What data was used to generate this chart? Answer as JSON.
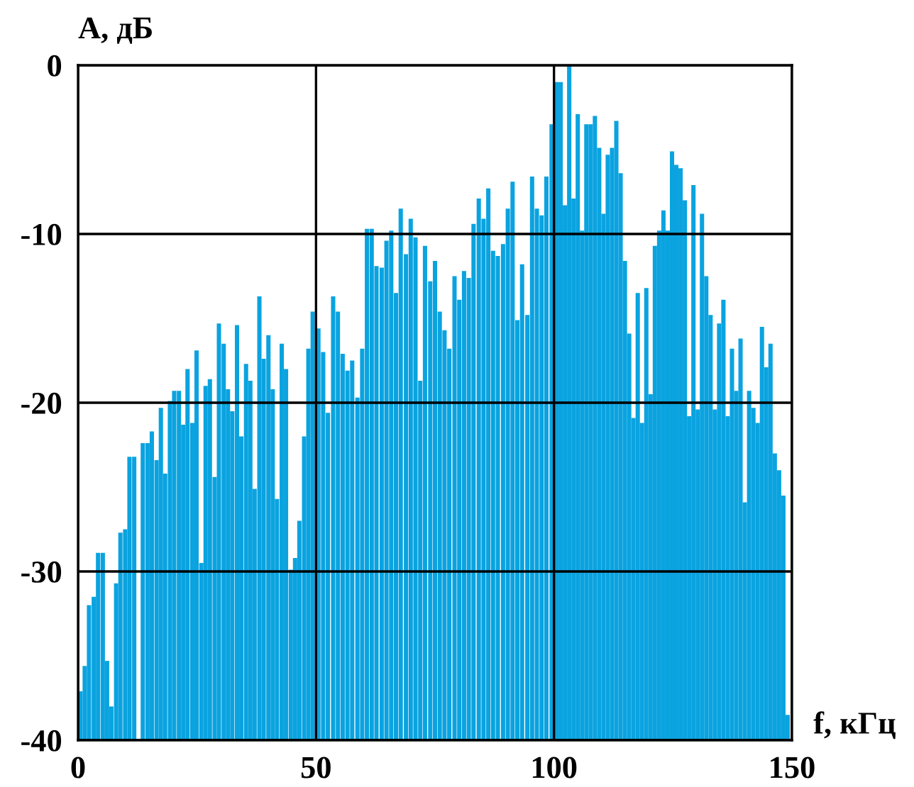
{
  "chart_data": {
    "type": "bar",
    "xlabel": "f, кГц",
    "ylabel": "A, дБ",
    "xlim": [
      0,
      150
    ],
    "xticks": [
      0,
      50,
      100,
      150
    ],
    "ylim": [
      -40,
      0
    ],
    "yticks": [
      0,
      -10,
      -20,
      -30,
      -40
    ],
    "grid": true,
    "series": [
      {
        "color": "#0aa3e0",
        "x": [
          0.5,
          1.4,
          2.3,
          3.3,
          4.2,
          5.2,
          6.1,
          7.0,
          8.0,
          8.9,
          9.9,
          10.8,
          11.8,
          13.6,
          14.6,
          15.5,
          16.5,
          17.4,
          18.3,
          19.3,
          20.2,
          21.2,
          22.1,
          23.0,
          24.0,
          24.9,
          25.9,
          26.8,
          27.7,
          28.7,
          29.6,
          30.6,
          31.5,
          32.4,
          33.4,
          34.3,
          35.3,
          36.2,
          37.1,
          38.1,
          39.0,
          40.0,
          40.9,
          41.8,
          42.8,
          43.7,
          44.7,
          45.6,
          46.5,
          47.5,
          48.4,
          49.3,
          50.5,
          51.5,
          52.5,
          53.6,
          54.6,
          55.6,
          56.6,
          57.6,
          58.7,
          59.7,
          60.7,
          61.7,
          62.7,
          63.8,
          64.8,
          65.8,
          66.8,
          67.8,
          68.9,
          69.9,
          70.9,
          71.9,
          72.9,
          74.0,
          75.0,
          76.0,
          77.0,
          78.0,
          79.1,
          80.1,
          81.1,
          82.1,
          83.1,
          84.2,
          85.2,
          86.2,
          87.2,
          88.2,
          89.3,
          90.3,
          91.3,
          92.3,
          93.3,
          94.4,
          95.4,
          96.4,
          97.4,
          98.4,
          99.5,
          100.5,
          101.4,
          102.3,
          103.2,
          104.1,
          105.0,
          105.9,
          106.8,
          107.7,
          108.6,
          109.5,
          110.4,
          111.3,
          112.2,
          113.1,
          114.0,
          114.9,
          115.8,
          116.7,
          117.6,
          118.5,
          119.4,
          120.3,
          121.2,
          122.1,
          123.0,
          123.9,
          124.8,
          125.7,
          126.6,
          127.5,
          128.4,
          129.3,
          130.2,
          131.1,
          132.0,
          132.9,
          133.8,
          134.7,
          135.6,
          136.5,
          137.4,
          138.3,
          139.2,
          140.1,
          141.0,
          141.9,
          142.8,
          143.7,
          144.6,
          145.5,
          146.4,
          147.3,
          148.2,
          149.1
        ],
        "base": [
          -40,
          -40,
          -40,
          -40,
          -40,
          -40,
          -40,
          -40,
          -40,
          -40,
          -40,
          -40,
          -40,
          -40,
          -40,
          -40,
          -40,
          -40,
          -40,
          -40,
          -40,
          -40,
          -40,
          -40,
          -40,
          -40,
          -40,
          -40,
          -40,
          -40,
          -40,
          -40,
          -40,
          -40,
          -40,
          -40,
          -40,
          -40,
          -40,
          -40,
          -40,
          -40,
          -40,
          -40,
          -40,
          -40,
          -40,
          -40,
          -40,
          -40,
          -40,
          -40,
          -40,
          -40,
          -40,
          -40,
          -40,
          -40,
          -40,
          -40,
          -40,
          -40,
          -40,
          -40,
          -40,
          -40,
          -40,
          -40,
          -40,
          -40,
          -40,
          -40,
          -40,
          -40,
          -40,
          -40,
          -40,
          -40,
          -40,
          -40,
          -40,
          -40,
          -40,
          -40,
          -40,
          -40,
          -40,
          -40,
          -40,
          -40,
          -40,
          -40,
          -40,
          -40,
          -40,
          -40,
          -40,
          -40,
          -40,
          -40,
          -40,
          -40,
          -40,
          -40,
          -40,
          -40,
          -40,
          -40,
          -40,
          -40,
          -40,
          -40,
          -40,
          -40,
          -40,
          -40,
          -40,
          -40,
          -40,
          -40,
          -40,
          -40,
          -40,
          -40,
          -40,
          -40,
          -40,
          -40,
          -40,
          -40,
          -40,
          -40,
          -40,
          -40,
          -40,
          -40,
          -40,
          -40,
          -40,
          -40,
          -40,
          -40,
          -40,
          -40,
          -40,
          -40,
          -40,
          -40,
          -40,
          -40,
          -40,
          -40,
          -40,
          -40,
          -40,
          -40
        ],
        "values": [
          2.9,
          4.4,
          8,
          8.5,
          11.1,
          11.1,
          4.7,
          2,
          9.3,
          12.3,
          12.5,
          16.8,
          16.8,
          17.6,
          17.6,
          18.3,
          16.6,
          19.7,
          15.8,
          20.1,
          20.7,
          20.7,
          18.7,
          22,
          18.8,
          23.1,
          10.5,
          21,
          21.4,
          15.6,
          24.7,
          23.5,
          20.8,
          19.5,
          24.6,
          18,
          22.3,
          21.3,
          14.9,
          26.3,
          22.6,
          24,
          20.8,
          14.3,
          23.5,
          22,
          10.1,
          10.8,
          13,
          18,
          23.2,
          25.4,
          24.4,
          23,
          19.4,
          26.3,
          25.4,
          22.9,
          21.9,
          22.5,
          20.3,
          23.2,
          30.3,
          30.3,
          28.1,
          28,
          29.6,
          30.2,
          26.5,
          31.5,
          28.8,
          30.9,
          29.8,
          21.3,
          29.3,
          27.2,
          28.4,
          25.4,
          24.3,
          23.2,
          27.5,
          26.1,
          27.8,
          27.4,
          30.6,
          32.1,
          30.9,
          32.7,
          29,
          28.7,
          29.4,
          31.5,
          33.1,
          24.9,
          28.2,
          25.2,
          33.4,
          31.5,
          31.1,
          33.4,
          36.5,
          39,
          39,
          31.7,
          40,
          32.1,
          37.1,
          30.2,
          36.5,
          36.5,
          37,
          35.1,
          31.2,
          34.7,
          35.1,
          36.7,
          33.6,
          28.4,
          24.1,
          19.1,
          26.5,
          18.8,
          26.8,
          20.5,
          29.3,
          30.2,
          31.4,
          30.2,
          34.9,
          34.1,
          33.9,
          32,
          19.2,
          32.9,
          19.6,
          31.2,
          27.5,
          25.2,
          19.6,
          24.7,
          26.1,
          19.2,
          23.2,
          20.7,
          23.8,
          14.1,
          20.7,
          19.7,
          18.8,
          24.5,
          22.1,
          23.5,
          17,
          16,
          14.5,
          1.5
        ]
      }
    ]
  }
}
